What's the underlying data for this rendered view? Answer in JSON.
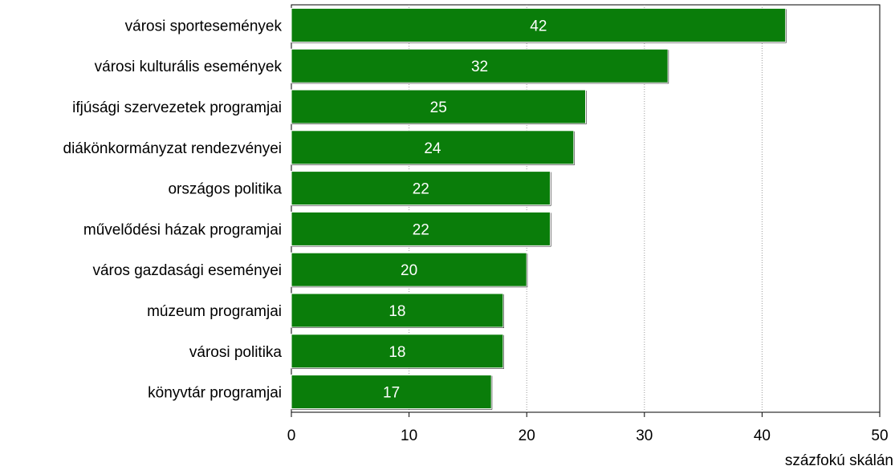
{
  "chart_data": {
    "type": "bar",
    "orientation": "horizontal",
    "categories": [
      "városi sportesemények",
      "városi kulturális események",
      "ifjúsági szervezetek programjai",
      "diákönkormányzat rendezvényei",
      "országos politika",
      "művelődési házak programjai",
      "város gazdasági eseményei",
      "múzeum programjai",
      "városi politika",
      "könyvtár programjai"
    ],
    "values": [
      42,
      32,
      25,
      24,
      22,
      22,
      20,
      18,
      18,
      17
    ],
    "x_ticks": [
      "0",
      "10",
      "20",
      "30",
      "40",
      "50"
    ],
    "xlim": [
      0,
      50
    ],
    "unit_label": "százfokú skálán",
    "grid": "vertical-dashed",
    "legend": "none",
    "colors": {
      "bar": "#0a7d0a",
      "bar_edge": "#000000",
      "value_text": "#ffffff",
      "grid": "#9a9a9a"
    }
  }
}
